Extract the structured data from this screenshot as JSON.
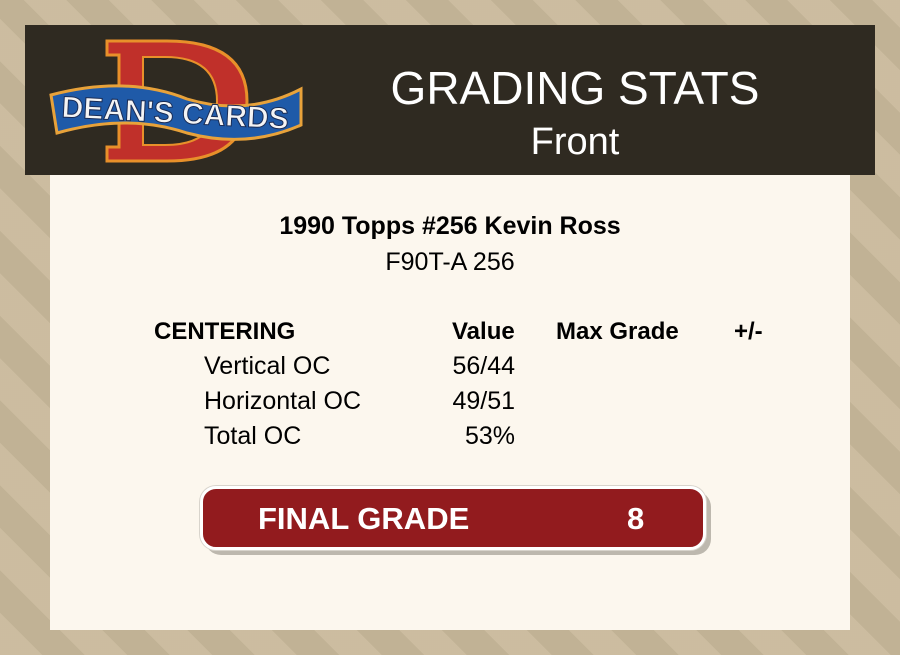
{
  "header": {
    "logo_text": "DEAN'S CARDS",
    "title": "GRADING STATS",
    "subtitle": "Front"
  },
  "card": {
    "name": "1990 Topps #256 Kevin Ross",
    "code": "F90T-A 256"
  },
  "table": {
    "headers": [
      "CENTERING",
      "Value",
      "Max Grade",
      "+/-"
    ],
    "rows": [
      {
        "label": "Vertical OC",
        "value": "56/44",
        "max_grade": "",
        "diff": ""
      },
      {
        "label": "Horizontal OC",
        "value": "49/51",
        "max_grade": "",
        "diff": ""
      },
      {
        "label": "Total OC",
        "value": "53%",
        "max_grade": "",
        "diff": ""
      }
    ]
  },
  "final": {
    "label": "FINAL GRADE",
    "value": "8"
  },
  "colors": {
    "header_bg": "#2f2a21",
    "panel_bg": "#fcf7ee",
    "grade_bg": "#921b1e",
    "logo_red": "#c0302a",
    "logo_blue": "#1f5aa8"
  }
}
